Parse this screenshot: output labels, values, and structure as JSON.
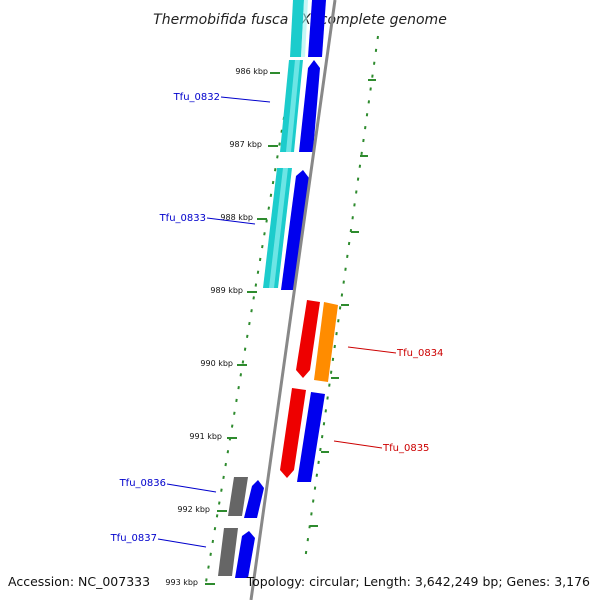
{
  "title": "Thermobifida fusca YX, complete genome",
  "footer": {
    "accession": "Accession: NC_007333",
    "topology": "Topology: circular; Length: 3,642,249 bp; Genes: 3,176"
  },
  "colors": {
    "backbone": "#888888",
    "tick": "#2e8b2e",
    "cds_blue": "#0000ee",
    "cds_cyan": "#1ccccc",
    "cds_red": "#ee0000",
    "cds_orange": "#ff8c00",
    "cds_gray": "#666666",
    "label_blue": "#0000cc",
    "label_red": "#cc0000"
  },
  "kbp_labels": [
    "986 kbp",
    "987 kbp",
    "988 kbp",
    "989 kbp",
    "990 kbp",
    "991 kbp",
    "992 kbp",
    "993 kbp"
  ],
  "genes": [
    {
      "name": "Tfu_0832",
      "strand": "forward",
      "color": "blue"
    },
    {
      "name": "Tfu_0833",
      "strand": "forward",
      "color": "blue"
    },
    {
      "name": "Tfu_0834",
      "strand": "reverse",
      "color": "red"
    },
    {
      "name": "Tfu_0835",
      "strand": "reverse",
      "color": "red"
    },
    {
      "name": "Tfu_0836",
      "strand": "forward",
      "color": "blue"
    },
    {
      "name": "Tfu_0837",
      "strand": "forward",
      "color": "blue"
    }
  ]
}
